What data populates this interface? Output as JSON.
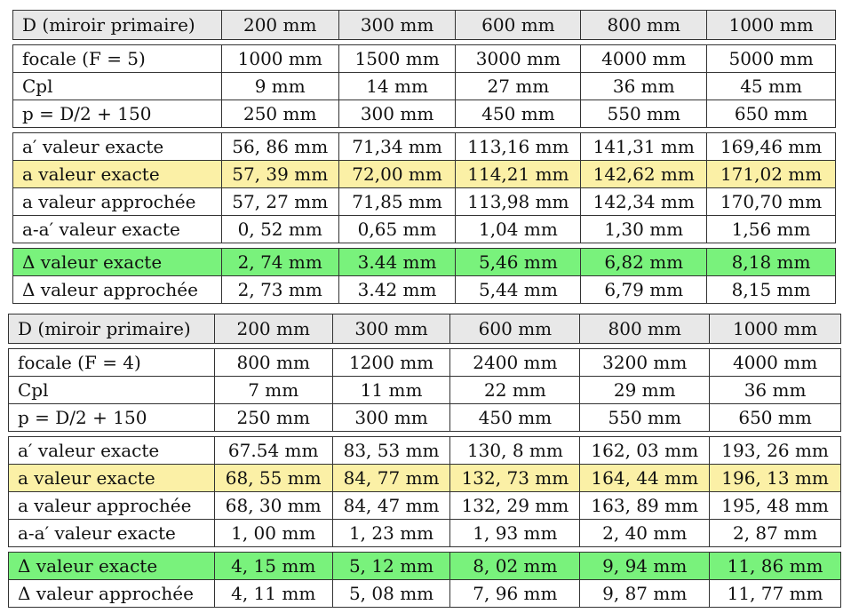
{
  "table1": {
    "header": [
      "D (miroir primaire)",
      "200 mm",
      "300 mm",
      "600 mm",
      "800 mm",
      "1000 mm"
    ],
    "group1": [
      {
        "label": "focale (F = 5)",
        "values": [
          "1000 mm",
          "1500 mm",
          "3000 mm",
          "4000 mm",
          "5000 mm"
        ]
      },
      {
        "label": "Cpl",
        "values": [
          "9 mm",
          "14 mm",
          "27 mm",
          "36 mm",
          "45 mm"
        ]
      },
      {
        "label": "p = D/2 + 150",
        "values": [
          "250 mm",
          "300 mm",
          "450 mm",
          "550 mm",
          "650 mm"
        ]
      }
    ],
    "group2": [
      {
        "label": "a′ valeur exacte",
        "values": [
          "56, 86 mm",
          "71,34 mm",
          "113,16 mm",
          "141,31 mm",
          "169,46 mm"
        ],
        "highlight": "none"
      },
      {
        "label": "a valeur exacte",
        "values": [
          "57, 39 mm",
          "72,00 mm",
          "114,21 mm",
          "142,62 mm",
          "171,02 mm"
        ],
        "highlight": "yellow"
      },
      {
        "label": "a valeur approchée",
        "values": [
          "57, 27 mm",
          "71,85 mm",
          "113,98 mm",
          "142,34 mm",
          "170,70 mm"
        ],
        "highlight": "none"
      },
      {
        "label": "a-a′ valeur exacte",
        "values": [
          "0, 52 mm",
          "0,65 mm",
          "1,04 mm",
          "1,30 mm",
          "1,56 mm"
        ],
        "highlight": "none"
      }
    ],
    "group3": [
      {
        "label": "Δ valeur exacte",
        "values": [
          "2, 74 mm",
          "3.44 mm",
          "5,46 mm",
          "6,82 mm",
          "8,18 mm"
        ],
        "highlight": "green"
      },
      {
        "label": "Δ valeur approchée",
        "values": [
          "2, 73 mm",
          "3.42 mm",
          "5,44 mm",
          "6,79 mm",
          "8,15 mm"
        ],
        "highlight": "none"
      }
    ]
  },
  "table2": {
    "header": [
      "D (miroir primaire)",
      "200 mm",
      "300 mm",
      "600 mm",
      "800 mm",
      "1000 mm"
    ],
    "group1": [
      {
        "label": "focale (F = 4)",
        "values": [
          "800 mm",
          "1200 mm",
          "2400 mm",
          "3200 mm",
          "4000 mm"
        ]
      },
      {
        "label": "Cpl",
        "values": [
          "7 mm",
          "11 mm",
          "22 mm",
          "29 mm",
          "36 mm"
        ]
      },
      {
        "label": "p = D/2 + 150",
        "values": [
          "250 mm",
          "300 mm",
          "450 mm",
          "550 mm",
          "650 mm"
        ]
      }
    ],
    "group2": [
      {
        "label": "a′ valeur exacte",
        "values": [
          "67.54 mm",
          "83, 53 mm",
          "130, 8 mm",
          "162, 03 mm",
          "193, 26 mm"
        ],
        "highlight": "none"
      },
      {
        "label": "a valeur exacte",
        "values": [
          "68, 55 mm",
          "84, 77 mm",
          "132, 73 mm",
          "164, 44 mm",
          "196, 13 mm"
        ],
        "highlight": "yellow"
      },
      {
        "label": "a valeur approchée",
        "values": [
          "68, 30 mm",
          "84, 47 mm",
          "132, 29 mm",
          "163, 89 mm",
          "195, 48 mm"
        ],
        "highlight": "none"
      },
      {
        "label": "a-a′ valeur exacte",
        "values": [
          "1, 00 mm",
          "1, 23 mm",
          "1, 93 mm",
          "2, 40 mm",
          "2, 87 mm"
        ],
        "highlight": "none"
      }
    ],
    "group3": [
      {
        "label": "Δ valeur exacte",
        "values": [
          "4, 15 mm",
          "5, 12 mm",
          "8, 02 mm",
          "9, 94 mm",
          "11, 86 mm"
        ],
        "highlight": "green"
      },
      {
        "label": "Δ valeur approchée",
        "values": [
          "4, 11 mm",
          "5, 08 mm",
          "7, 96 mm",
          "9, 87 mm",
          "11, 77 mm"
        ],
        "highlight": "none"
      }
    ],
    "colors": {
      "yellow": "#fbf0a6",
      "green": "#79f27c",
      "header": "#e8e8e8"
    }
  }
}
